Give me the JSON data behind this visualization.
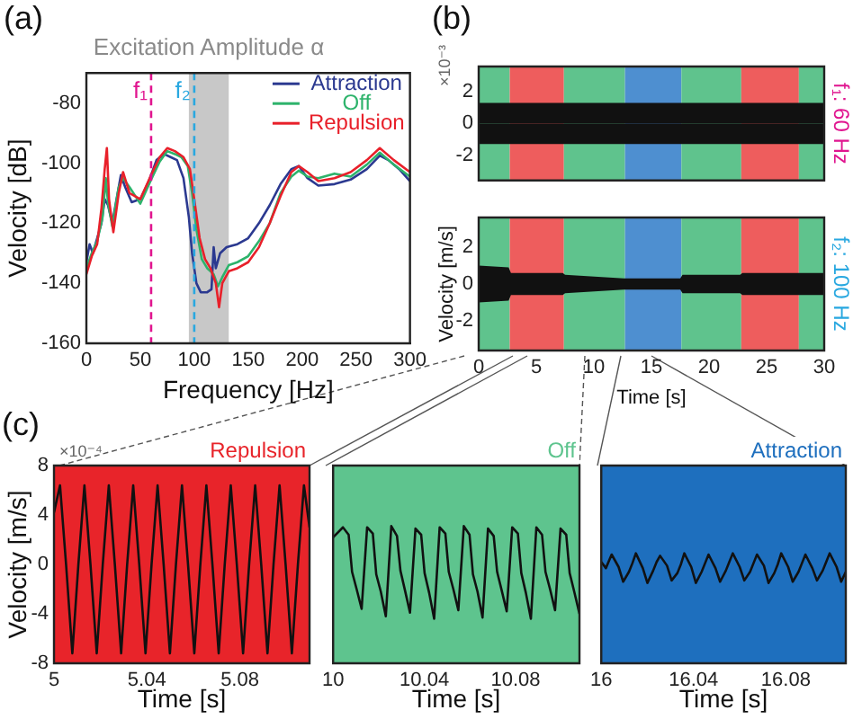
{
  "chart_data": [
    {
      "type": "line",
      "title": "Excitation Amplitude α",
      "xlabel": "Frequency [Hz]",
      "ylabel": "Velocity [dB]",
      "xlim": [
        0,
        300
      ],
      "xticks": [
        0,
        50,
        100,
        150,
        200,
        250,
        300
      ],
      "ylim": [
        -160,
        -70
      ],
      "yticks": [
        -160,
        -140,
        -120,
        -100,
        -80
      ],
      "legend": "top right",
      "annotations": [
        "(a)"
      ],
      "ref_lines": [
        {
          "axis": "x",
          "value": 60,
          "label": "f₁",
          "color": "#e0158f",
          "line_style": "dashed"
        },
        {
          "axis": "x",
          "value": 100,
          "label": "f₂",
          "color": "#29a8e0",
          "line_style": "dashed"
        }
      ],
      "bands": [
        {
          "axis": "x",
          "from": 95,
          "to": 132,
          "color": "#c8c8c8"
        }
      ],
      "series": [
        {
          "name": "Attraction",
          "color": "#2b3990",
          "x": [
            0,
            3,
            6,
            10,
            14,
            17,
            20,
            24,
            28,
            32,
            36,
            42,
            50,
            58,
            65,
            72,
            78,
            84,
            90,
            95,
            98,
            102,
            106,
            112,
            116,
            118,
            120,
            124,
            130,
            140,
            150,
            160,
            170,
            180,
            190,
            197,
            205,
            215,
            230,
            245,
            260,
            272,
            280,
            290,
            300
          ],
          "values": [
            -133,
            -127,
            -130,
            -125,
            -120,
            -112,
            -114,
            -120,
            -112,
            -104,
            -108,
            -113,
            -112,
            -106,
            -99,
            -97,
            -98,
            -99,
            -105,
            -118,
            -130,
            -140,
            -143,
            -143,
            -142,
            -128,
            -135,
            -130,
            -128,
            -127,
            -125,
            -120,
            -114,
            -107,
            -102,
            -101,
            -105,
            -107.5,
            -107,
            -105.5,
            -102,
            -97.5,
            -99,
            -102,
            -106
          ]
        },
        {
          "name": "Off",
          "color": "#2db36b",
          "x": [
            0,
            5,
            10,
            15,
            18,
            20,
            24,
            30,
            34,
            40,
            50,
            60,
            68,
            75,
            82,
            88,
            94,
            98,
            102,
            107,
            112,
            118,
            122,
            126,
            132,
            140,
            150,
            160,
            170,
            180,
            190,
            197,
            205,
            215,
            230,
            245,
            260,
            272,
            285,
            300
          ],
          "values": [
            -135,
            -130,
            -126,
            -118,
            -105,
            -113,
            -121,
            -108,
            -105,
            -108,
            -113.5,
            -105.5,
            -99.5,
            -96,
            -97,
            -98,
            -101,
            -110,
            -122,
            -132,
            -135,
            -137,
            -141,
            -138,
            -134,
            -133,
            -131,
            -126,
            -120,
            -110,
            -104.5,
            -102.5,
            -104.5,
            -105,
            -103.5,
            -104.5,
            -100.5,
            -96.5,
            -100.5,
            -104.5
          ]
        },
        {
          "name": "Repulsion",
          "color": "#e8202a",
          "x": [
            0,
            5,
            10,
            14,
            17,
            19,
            21,
            25,
            30,
            34,
            40,
            50,
            60,
            68,
            75,
            82,
            90,
            96,
            100,
            105,
            110,
            115,
            120,
            123,
            126,
            132,
            140,
            150,
            160,
            170,
            180,
            190,
            197,
            205,
            215,
            230,
            245,
            260,
            272,
            285,
            300
          ],
          "values": [
            -137,
            -131,
            -127,
            -115,
            -102,
            -95,
            -112,
            -123,
            -110,
            -103,
            -110,
            -112,
            -104,
            -98,
            -95,
            -96,
            -98,
            -102,
            -112,
            -125,
            -132,
            -135,
            -140,
            -148,
            -140,
            -136,
            -135,
            -133,
            -128,
            -120,
            -111,
            -103,
            -101,
            -103,
            -106,
            -105,
            -103,
            -99,
            -95,
            -99,
            -103
          ]
        }
      ]
    },
    {
      "type": "area",
      "y2label": "f₁: 60 Hz",
      "xlim": [
        0,
        30
      ],
      "xticks": [
        0,
        5,
        10,
        15,
        20,
        25,
        30
      ],
      "ylim": [
        -3.6,
        3.6
      ],
      "yticks": [
        -2,
        0,
        2
      ],
      "tick_labels": "y",
      "annotations": [
        "(b)",
        "×10⁻³"
      ],
      "bands": [
        {
          "axis": "x",
          "from": 0,
          "to": 2.7,
          "color": "#5fc38d"
        },
        {
          "axis": "x",
          "from": 2.7,
          "to": 7.4,
          "color": "#ee5d5d"
        },
        {
          "axis": "x",
          "from": 7.4,
          "to": 12.7,
          "color": "#5fc38d"
        },
        {
          "axis": "x",
          "from": 12.7,
          "to": 17.6,
          "color": "#4e8fd0"
        },
        {
          "axis": "x",
          "from": 17.6,
          "to": 22.8,
          "color": "#5fc38d"
        },
        {
          "axis": "x",
          "from": 22.8,
          "to": 27.8,
          "color": "#ee5d5d"
        },
        {
          "axis": "x",
          "from": 27.8,
          "to": 30,
          "color": "#5fc38d"
        }
      ],
      "series": [
        {
          "color": "#111111",
          "x": [
            0,
            30
          ],
          "values": [
            1.3,
            1.3
          ]
        },
        {
          "color": "#111111",
          "x": [
            0,
            30
          ],
          "values": [
            -1.3,
            -1.3
          ]
        }
      ]
    },
    {
      "type": "area",
      "ylabel": "Velocity [m/s]",
      "xlabel": "Time [s]",
      "y2label": "f₂: 100 Hz",
      "xlim": [
        0,
        30
      ],
      "xticks": [
        0,
        5,
        10,
        15,
        20,
        25,
        30
      ],
      "ylim": [
        -3.6,
        3.6
      ],
      "yticks": [
        -2,
        0,
        2
      ],
      "bands": [
        {
          "axis": "x",
          "from": 0,
          "to": 2.7,
          "color": "#5fc38d"
        },
        {
          "axis": "x",
          "from": 2.7,
          "to": 7.4,
          "color": "#ee5d5d"
        },
        {
          "axis": "x",
          "from": 7.4,
          "to": 12.7,
          "color": "#5fc38d"
        },
        {
          "axis": "x",
          "from": 12.7,
          "to": 17.6,
          "color": "#4e8fd0"
        },
        {
          "axis": "x",
          "from": 17.6,
          "to": 22.8,
          "color": "#5fc38d"
        },
        {
          "axis": "x",
          "from": 22.8,
          "to": 27.8,
          "color": "#ee5d5d"
        },
        {
          "axis": "x",
          "from": 27.8,
          "to": 30,
          "color": "#5fc38d"
        }
      ],
      "series": [
        {
          "color": "#111111",
          "x": [
            0,
            2.6,
            2.8,
            7.3,
            7.5,
            12.6,
            12.8,
            17.5,
            17.7,
            22.7,
            22.9,
            27.7,
            27.9,
            30
          ],
          "values": [
            1.0,
            0.9,
            0.6,
            0.6,
            0.5,
            0.3,
            0.3,
            0.3,
            0.5,
            0.5,
            0.6,
            0.6,
            0.6,
            0.6
          ]
        },
        {
          "color": "#111111",
          "x": [
            0,
            2.6,
            2.8,
            7.3,
            7.5,
            12.6,
            12.8,
            17.5,
            17.7,
            22.7,
            22.9,
            27.7,
            27.9,
            30
          ],
          "values": [
            -1.0,
            -0.9,
            -0.6,
            -0.6,
            -0.5,
            -0.3,
            -0.3,
            -0.3,
            -0.5,
            -0.5,
            -0.6,
            -0.6,
            -0.6,
            -0.6
          ]
        }
      ]
    },
    {
      "type": "line",
      "ylabel": "Velocity [m/s]",
      "xlabel": "Time [s]",
      "xlim": [
        5,
        5.11
      ],
      "xticks": [
        5,
        5.04,
        5.08
      ],
      "ylim": [
        -8,
        8
      ],
      "yticks": [
        -8,
        -4,
        0,
        4,
        8
      ],
      "annotations": [
        "(c)",
        "×10⁻⁴"
      ],
      "bands": [
        {
          "axis": "x",
          "from": 5,
          "to": 5.11,
          "color": "#e8242a",
          "label": "Repulsion"
        }
      ],
      "series": [
        {
          "color": "#111111",
          "x": [
            5,
            5.0026,
            5.0052,
            5.0079,
            5.0105,
            5.0131,
            5.0157,
            5.0184,
            5.021,
            5.0236,
            5.0262,
            5.0289,
            5.0315,
            5.0341,
            5.0367,
            5.0394,
            5.042,
            5.0446,
            5.0472,
            5.0499,
            5.0525,
            5.0551,
            5.0577,
            5.0604,
            5.063,
            5.0656,
            5.0682,
            5.0709,
            5.0735,
            5.0761,
            5.0787,
            5.0814,
            5.084,
            5.0866,
            5.0892,
            5.0919,
            5.0945,
            5.0971,
            5.0997,
            5.1024,
            5.105,
            5.1076,
            5.11
          ],
          "values": [
            4.2,
            6.4,
            0,
            -7.2,
            0,
            6.4,
            0,
            -7.2,
            0,
            6.4,
            0,
            -7.2,
            0,
            6.4,
            0,
            -7.2,
            0,
            6.4,
            0,
            -7.2,
            0,
            6.4,
            0,
            -7.2,
            0,
            6.4,
            0,
            -7.2,
            0,
            6.4,
            0,
            -7.2,
            0,
            6.4,
            0,
            -7.2,
            0,
            6.4,
            0,
            -7.2,
            0,
            6.4,
            3
          ]
        }
      ]
    },
    {
      "type": "line",
      "xlabel": "Time [s]",
      "xlim": [
        10,
        10.108
      ],
      "xticks": [
        10,
        10.04,
        10.08
      ],
      "ylim": [
        -8,
        8
      ],
      "yticks": [
        -8,
        -4,
        0,
        4,
        8
      ],
      "tick_labels": "x",
      "bands": [
        {
          "axis": "x",
          "from": 10,
          "to": 10.108,
          "color": "#5ec48e",
          "label": "Off"
        }
      ],
      "series": [
        {
          "color": "#111111",
          "x": [
            10,
            10.0043,
            10.0068,
            10.0083,
            10.0103,
            10.0125,
            10.0149,
            10.0174,
            10.0189,
            10.0209,
            10.0231,
            10.0255,
            10.028,
            10.0295,
            10.0315,
            10.0337,
            10.0361,
            10.0386,
            10.0401,
            10.0421,
            10.0443,
            10.0467,
            10.0492,
            10.0507,
            10.0527,
            10.0549,
            10.0573,
            10.0598,
            10.0613,
            10.0633,
            10.0655,
            10.0679,
            10.0704,
            10.0719,
            10.0739,
            10.0761,
            10.0785,
            10.081,
            10.0825,
            10.0845,
            10.0867,
            10.0891,
            10.0916,
            10.0931,
            10.0951,
            10.0973,
            10.0997,
            10.1022,
            10.1037,
            10.1057,
            10.108
          ],
          "values": [
            2.2,
            3.0,
            2.4,
            -0.6,
            -2.0,
            -3.6,
            3.0,
            2.5,
            -0.8,
            -2.2,
            -4.2,
            3.1,
            2.3,
            -0.5,
            -2.1,
            -3.9,
            2.9,
            2.4,
            -0.7,
            -2.3,
            -4.4,
            3.0,
            2.5,
            -0.6,
            -2.0,
            -3.7,
            3.1,
            2.4,
            -0.8,
            -2.2,
            -4.3,
            2.9,
            2.3,
            -0.6,
            -2.1,
            -3.8,
            3.0,
            2.5,
            -0.7,
            -2.3,
            -4.4,
            3.0,
            2.4,
            -0.6,
            -2.0,
            -3.7,
            2.9,
            2.4,
            -0.7,
            -2.2,
            -4.0
          ]
        }
      ]
    },
    {
      "type": "line",
      "xlabel": "Time [s]",
      "xlim": [
        16,
        16.106
      ],
      "xticks": [
        16,
        16.04,
        16.08
      ],
      "ylim": [
        -8,
        8
      ],
      "yticks": [
        -8,
        -4,
        0,
        4,
        8
      ],
      "tick_labels": "x",
      "bands": [
        {
          "axis": "x",
          "from": 16,
          "to": 16.106,
          "color": "#1e6fbe",
          "label": "Attraction"
        }
      ],
      "series": [
        {
          "color": "#111111",
          "x": [
            16,
            16.002,
            16.0045,
            16.0075,
            16.0095,
            16.012,
            16.0135,
            16.015,
            16.018,
            16.02,
            16.0225,
            16.024,
            16.0255,
            16.0285,
            16.0305,
            16.033,
            16.0345,
            16.036,
            16.039,
            16.041,
            16.0435,
            16.045,
            16.0465,
            16.0495,
            16.0515,
            16.054,
            16.0555,
            16.057,
            16.06,
            16.062,
            16.0645,
            16.066,
            16.0675,
            16.0705,
            16.0725,
            16.075,
            16.0765,
            16.078,
            16.081,
            16.083,
            16.0855,
            16.087,
            16.0885,
            16.0915,
            16.0935,
            16.096,
            16.0975,
            16.099,
            16.102,
            16.104,
            16.106
          ],
          "values": [
            0.2,
            -0.3,
            0.8,
            -0.2,
            -1.4,
            -0.6,
            0.1,
            0.9,
            -0.3,
            -1.5,
            -0.5,
            0.2,
            0.7,
            -0.1,
            -1.3,
            -0.7,
            0.0,
            0.9,
            -0.2,
            -1.5,
            -0.6,
            0.1,
            0.8,
            -0.3,
            -1.4,
            -0.5,
            0.2,
            0.9,
            -0.2,
            -1.3,
            -0.6,
            0.1,
            0.8,
            -0.1,
            -1.5,
            -0.7,
            0.0,
            0.9,
            -0.2,
            -1.4,
            -0.6,
            0.1,
            0.8,
            -0.3,
            -1.3,
            -0.5,
            0.2,
            0.9,
            -0.2,
            -1.4,
            -0.6
          ]
        }
      ]
    }
  ]
}
